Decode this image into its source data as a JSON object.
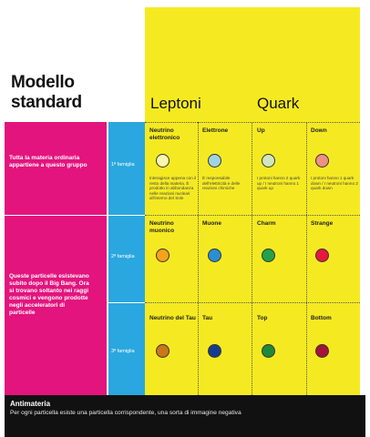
{
  "title_line1": "Modello",
  "title_line2": "standard",
  "categories": {
    "leptons": "Leptoni",
    "quarks": "Quark"
  },
  "side_text_1": "Tutta la materia ordinaria appartiene a questo gruppo",
  "side_text_2": "Queste particelle esistevano subito dopo il Big Bang. Ora si trovano soltanto nei raggi cosmici e vengono prodotte negli acceleratori di particelle",
  "families": [
    "1ª famiglia",
    "2ª famiglia",
    "3ª famiglia"
  ],
  "particles": {
    "e_neutrino": {
      "name": "Neutrino elettronico",
      "desc": "Interagisce appena con il resto della materia. È prodotto in abbondanza nelle reazioni nucleari all'interno del Sole",
      "color": "#fbf7b0"
    },
    "electron": {
      "name": "Elettrone",
      "desc": "È responsabile dell'elettricità e delle reazioni chimiche",
      "color": "#9fd3e3"
    },
    "up": {
      "name": "Up",
      "desc": "I protoni hanno 2 quark up / I neutroni hanno 1 quark up",
      "color": "#cfe6bf"
    },
    "down": {
      "name": "Down",
      "desc": "I protoni hanno 1 quark down / I neutroni hanno 2 quark down",
      "color": "#ef8f86"
    },
    "mu_neutrino": {
      "name": "Neutrino muonico",
      "color": "#f7a21b"
    },
    "muon": {
      "name": "Muone",
      "color": "#2a8ed3"
    },
    "charm": {
      "name": "Charm",
      "color": "#23a24a"
    },
    "strange": {
      "name": "Strange",
      "color": "#e8173d"
    },
    "tau_neutrino": {
      "name": "Neutrino del Tau",
      "color": "#c97719"
    },
    "tau": {
      "name": "Tau",
      "color": "#163c8f"
    },
    "top": {
      "name": "Top",
      "color": "#1e8a38"
    },
    "bottom": {
      "name": "Bottom",
      "color": "#a3143a"
    }
  },
  "footer": {
    "heading": "Antimateria",
    "text": "Per ogni particella esiste una particella corrispondente, una sorta di immagine negativa"
  }
}
